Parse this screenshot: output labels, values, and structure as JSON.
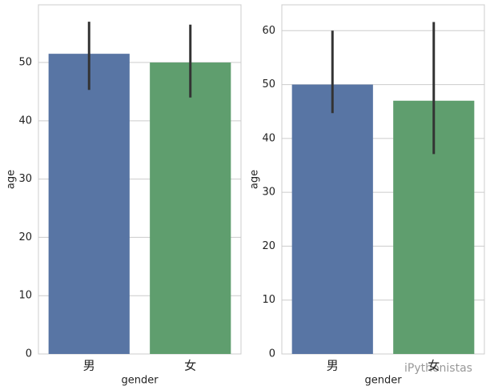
{
  "chart_data": [
    {
      "type": "bar",
      "categories": [
        "男",
        "女"
      ],
      "values": [
        51.5,
        50
      ],
      "ci": [
        [
          45.3,
          57
        ],
        [
          44,
          56.5
        ]
      ],
      "colors": [
        "#5875a4",
        "#5f9e6e"
      ],
      "errcolor": "#333333",
      "xlabel": "gender",
      "ylabel": "age",
      "ylim": [
        0,
        59.9
      ],
      "yticks": [
        0,
        10,
        20,
        30,
        40,
        50
      ],
      "grid": true
    },
    {
      "type": "bar",
      "categories": [
        "男",
        "女"
      ],
      "values": [
        50,
        47
      ],
      "ci": [
        [
          44.7,
          60
        ],
        [
          37.1,
          61.6
        ]
      ],
      "colors": [
        "#5875a4",
        "#5f9e6e"
      ],
      "errcolor": "#333333",
      "xlabel": "gender",
      "ylabel": "age",
      "ylim": [
        0,
        64.8
      ],
      "yticks": [
        0,
        10,
        20,
        30,
        40,
        50,
        60
      ],
      "grid": true
    }
  ],
  "watermark": "iPythonistas"
}
